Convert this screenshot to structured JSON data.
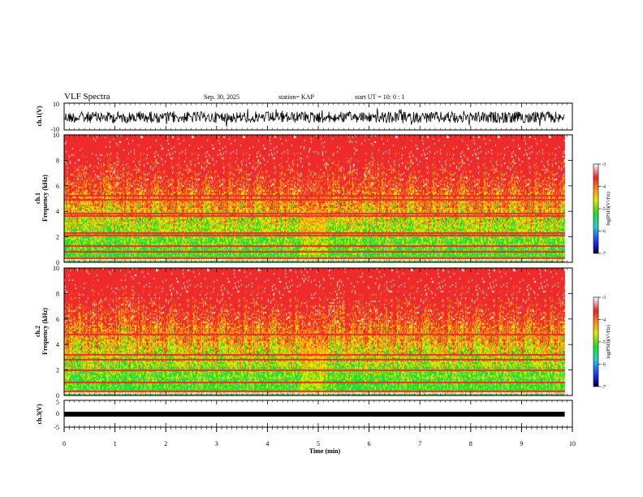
{
  "header": {
    "title": "VLF Spectra",
    "date": "Sep. 30, 2025",
    "station": "station= KAP",
    "start": "start  UT =   10: 0  : 1"
  },
  "colors": {
    "red": "#ee2a2a",
    "orange": "#ff8c1a",
    "yellow": "#e6e600",
    "green": "#22dd22",
    "cyan": "#2bd6a8",
    "blue": "#1f3fff",
    "dark": "#000040"
  },
  "chart_data": [
    {
      "id": "ch1-waveform",
      "type": "line",
      "ylabel": "ch.1(V)",
      "ylim": [
        -10,
        10
      ],
      "yticks": [
        "10",
        "-10"
      ],
      "xlim": [
        0,
        10
      ]
    },
    {
      "id": "ch1-spectrogram",
      "type": "heatmap",
      "ylabel_top": "ch.1",
      "ylabel": "Frequency (kHz)",
      "ylim": [
        0,
        10
      ],
      "yticks": [
        "0",
        "2",
        "4",
        "6",
        "8",
        "10"
      ],
      "xlim": [
        0,
        10
      ],
      "data_end_min": 9.85,
      "colorbar": {
        "label": "log(PSD)(V²/Hz)",
        "ticks": [
          "-3",
          "-4",
          "-5",
          "-6",
          "-7"
        ],
        "range": [
          -7,
          -3
        ]
      },
      "narrowband_lines_khz": [
        0.3,
        0.8,
        1.3,
        2.1,
        2.3,
        3.6,
        3.8,
        4.9,
        5.2
      ]
    },
    {
      "id": "ch2-spectrogram",
      "type": "heatmap",
      "ylabel_top": "ch.2",
      "ylabel": "Frequency (kHz)",
      "ylim": [
        0,
        10
      ],
      "yticks": [
        "0",
        "2",
        "4",
        "6",
        "8",
        "10"
      ],
      "xlim": [
        0,
        10
      ],
      "data_end_min": 9.85,
      "colorbar": {
        "label": "log(PSD)(V²/Hz)",
        "ticks": [
          "-3",
          "-4",
          "-5",
          "-6",
          "-7"
        ],
        "range": [
          -7,
          -3
        ]
      },
      "narrowband_lines_khz": [
        0.3,
        1.0,
        2.0,
        2.8,
        3.2,
        4.8,
        7.8
      ]
    },
    {
      "id": "ch3-waveform",
      "type": "line",
      "ylabel": "ch.3(V)",
      "ylim": [
        -5,
        5
      ],
      "yticks": [
        "5",
        "0",
        "-5"
      ],
      "xlim": [
        0,
        10
      ],
      "level_v": -0.3
    },
    {
      "id": "time-axis",
      "xlabel": "Time  (min)",
      "xticks": [
        "0",
        "1",
        "2",
        "3",
        "4",
        "5",
        "6",
        "7",
        "8",
        "9",
        "10"
      ]
    }
  ]
}
